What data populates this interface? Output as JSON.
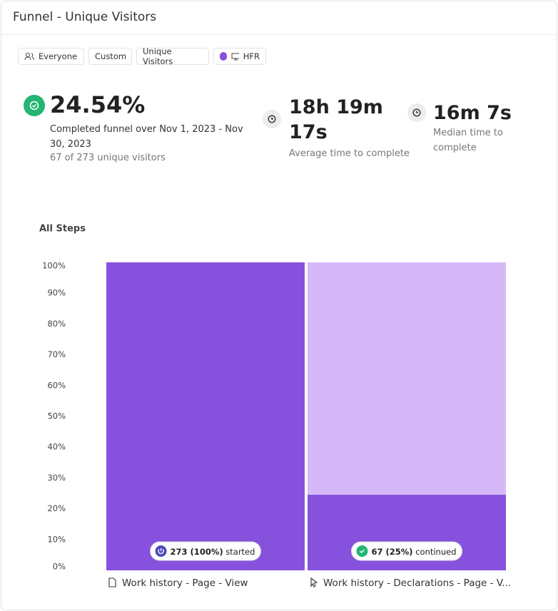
{
  "header": {
    "title": "Funnel - Unique Visitors"
  },
  "filters": [
    "Everyone",
    "Custom",
    "Unique Visitors",
    "HFR"
  ],
  "stats": {
    "conversion": {
      "value": "24.54%",
      "description": "Completed funnel over Nov 1, 2023 - Nov 30, 2023",
      "detail": "67 of 273 unique visitors"
    },
    "average": {
      "value": "18h 19m 17s",
      "label": "Average time to complete"
    },
    "median": {
      "value": "16m 7s",
      "label": "Median time to complete"
    }
  },
  "chart_data": {
    "type": "funnel",
    "title": "All Steps",
    "categories": [
      "Work history - Page - View",
      "Work history - Declarations - Page - V..."
    ],
    "values": [
      100,
      24.54
    ],
    "value_labels": [
      "273 (100%)",
      "67 (25%)"
    ],
    "step_labels": [
      "started",
      "continued"
    ],
    "color": "#8652dd",
    "dropoff_color": "#d4b8f8",
    "ylim": [
      0,
      100
    ],
    "yticks": [
      {
        "value": 0,
        "label": "0%"
      },
      {
        "value": 10,
        "label": "10%"
      },
      {
        "value": 20,
        "label": "20%"
      },
      {
        "value": 30,
        "label": "30%"
      },
      {
        "value": 40,
        "label": "40%"
      },
      {
        "value": 50,
        "label": "50%"
      },
      {
        "value": 60,
        "label": "60%"
      },
      {
        "value": 70,
        "label": "70%"
      },
      {
        "value": 80,
        "label": "80%"
      },
      {
        "value": 90,
        "label": "90%"
      },
      {
        "value": 100,
        "label": "100%"
      }
    ]
  }
}
